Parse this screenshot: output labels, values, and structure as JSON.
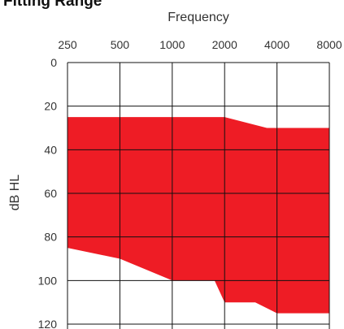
{
  "chart_data": {
    "type": "area",
    "title": "Fitting Range",
    "xlabel": "Frequency",
    "ylabel": "dB HL",
    "x_scale": "log",
    "x_ticks": [
      250,
      500,
      1000,
      2000,
      4000,
      8000
    ],
    "x_tick_labels": [
      "250",
      "500",
      "1000",
      "2000",
      "4000",
      "8000"
    ],
    "y_ticks": [
      0,
      20,
      40,
      60,
      80,
      100,
      120
    ],
    "y_tick_labels": [
      "0",
      "20",
      "40",
      "60",
      "80",
      "100",
      "120"
    ],
    "ylim": [
      0,
      120
    ],
    "y_inverted": true,
    "xlim": [
      250,
      8000
    ],
    "grid": true,
    "fill_color": "#ee1c25",
    "upper_boundary": [
      {
        "x": 250,
        "y": 25
      },
      {
        "x": 2000,
        "y": 25
      },
      {
        "x": 3500,
        "y": 30
      },
      {
        "x": 8000,
        "y": 30
      }
    ],
    "lower_boundary": [
      {
        "x": 250,
        "y": 85
      },
      {
        "x": 500,
        "y": 90
      },
      {
        "x": 1000,
        "y": 100
      },
      {
        "x": 1750,
        "y": 100
      },
      {
        "x": 2000,
        "y": 110
      },
      {
        "x": 3000,
        "y": 110
      },
      {
        "x": 4000,
        "y": 115
      },
      {
        "x": 8000,
        "y": 115
      }
    ]
  }
}
